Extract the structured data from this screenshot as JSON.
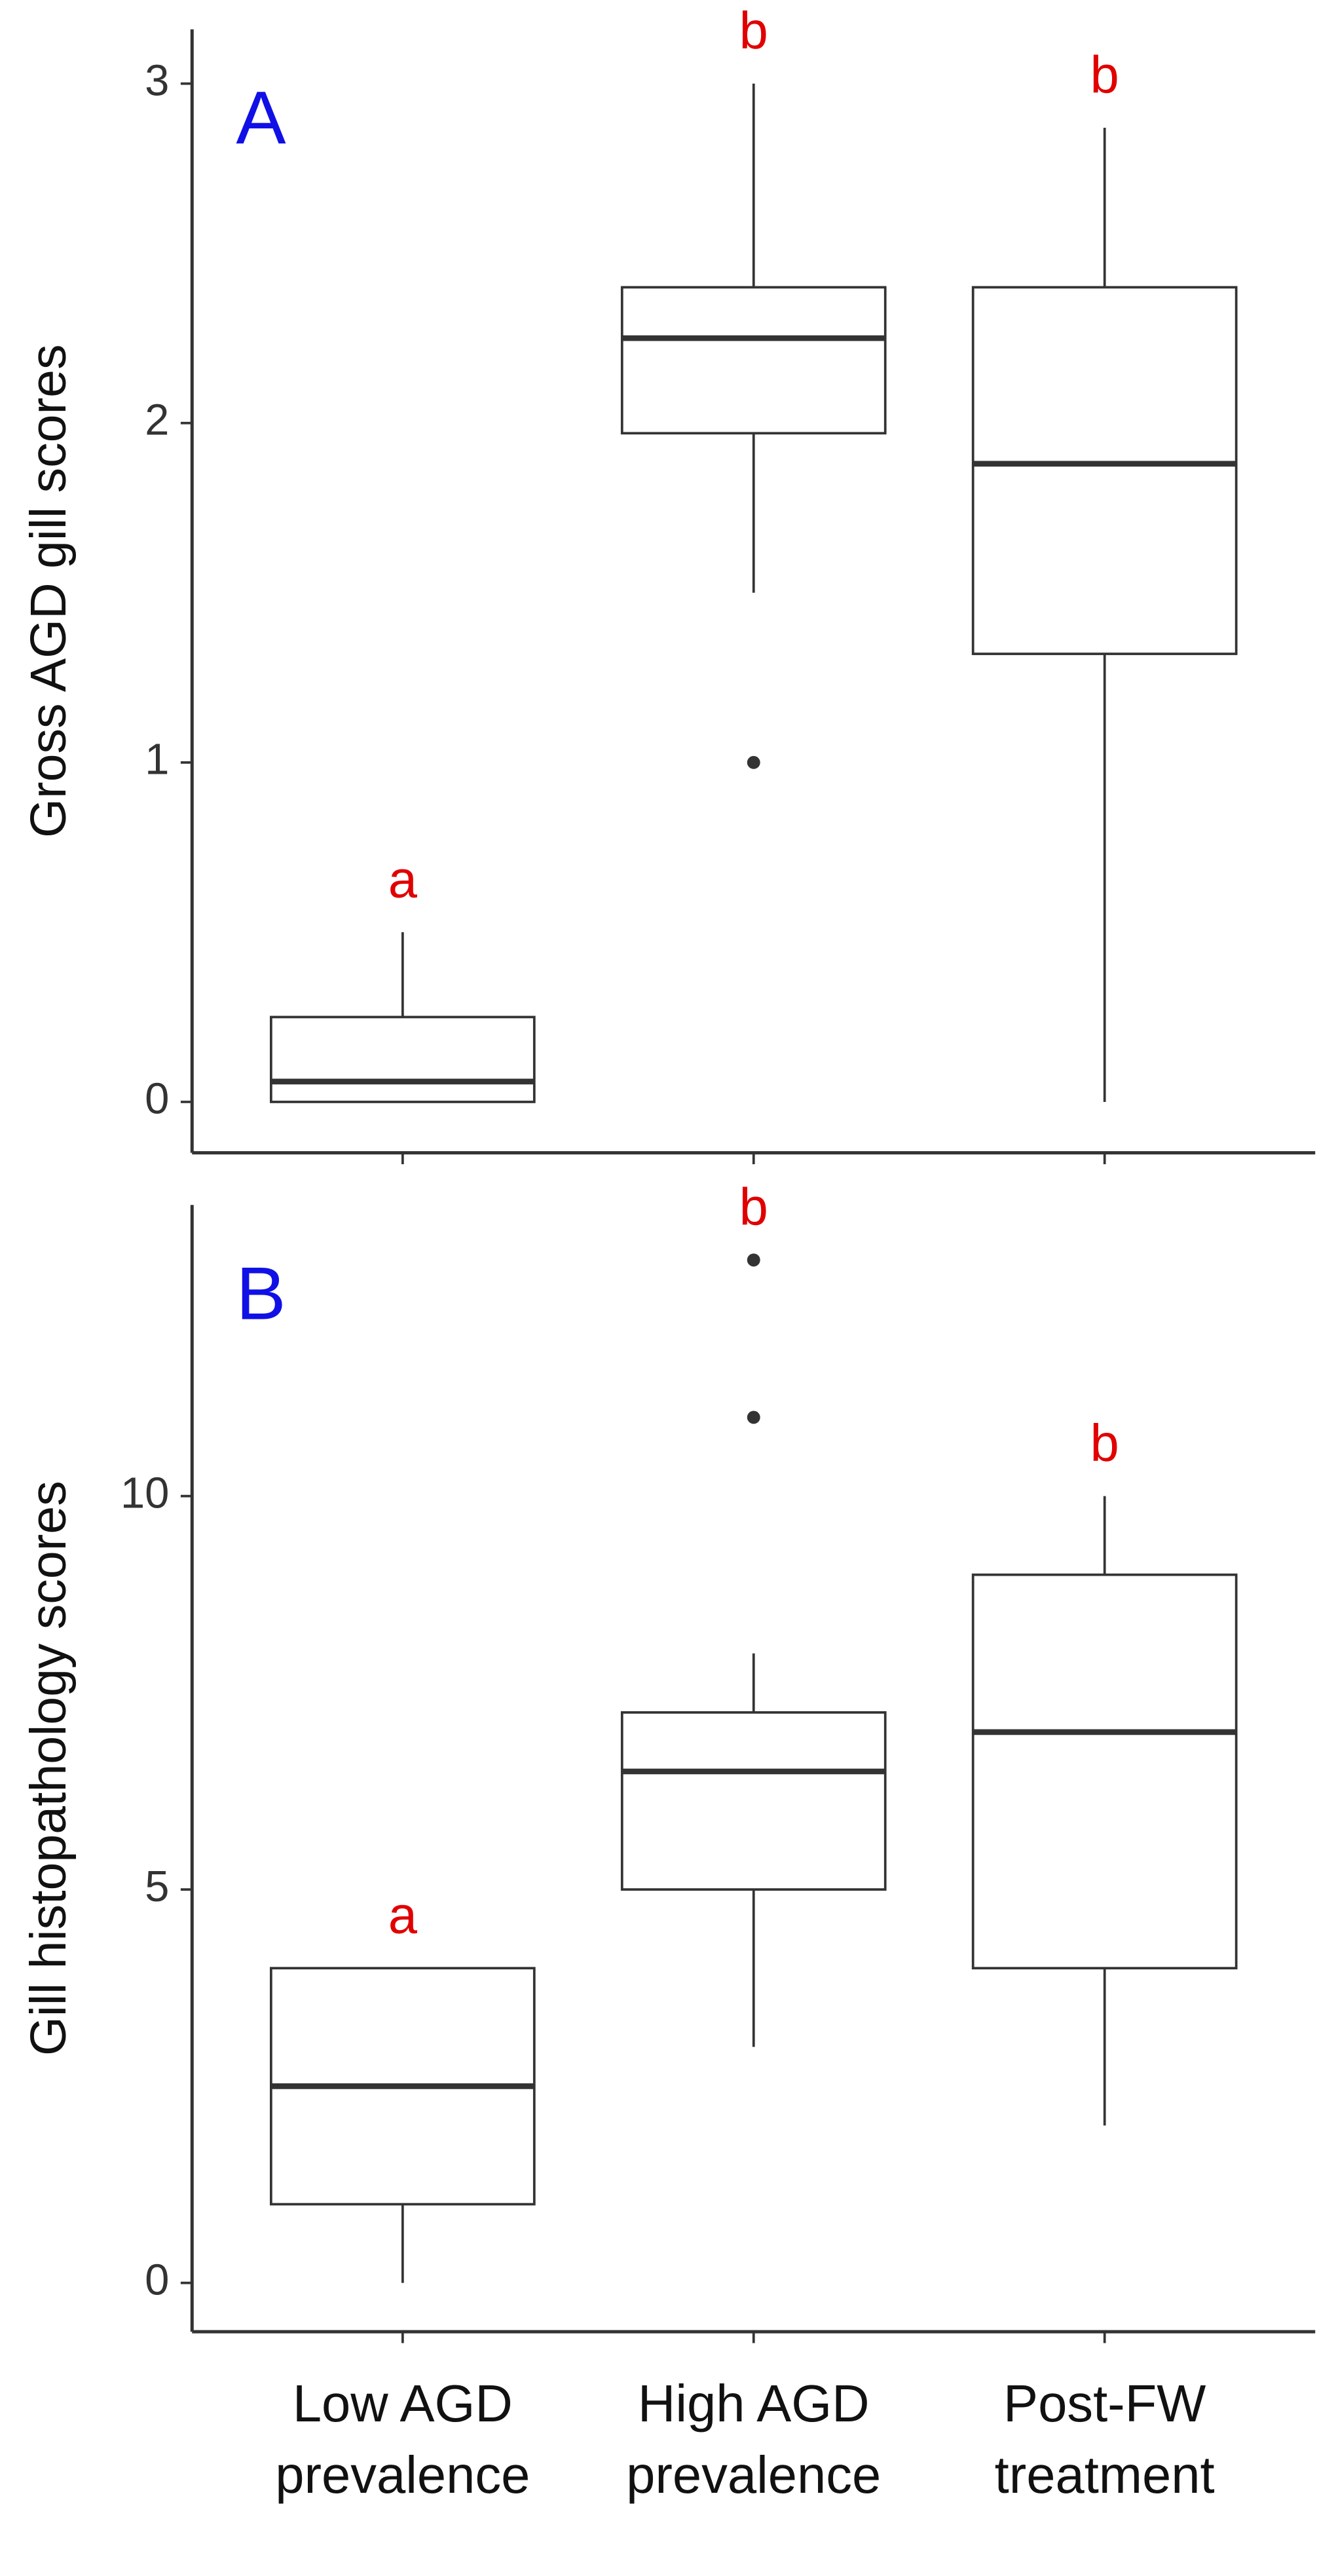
{
  "chart_data": [
    {
      "type": "box",
      "panel_label": "A",
      "ylabel": "Gross AGD gill scores",
      "ylim": [
        -0.15,
        3.16
      ],
      "yticks": [
        0,
        1,
        2,
        3
      ],
      "boxes": [
        {
          "whislo": 0,
          "q1": 0,
          "med": 0.06,
          "q3": 0.25,
          "whishi": 0.5,
          "fliers": [],
          "letter": "a"
        },
        {
          "whislo": 1.5,
          "q1": 1.97,
          "med": 2.25,
          "q3": 2.4,
          "whishi": 3,
          "fliers": [
            1
          ],
          "letter": "b"
        },
        {
          "whislo": 0,
          "q1": 1.32,
          "med": 1.88,
          "q3": 2.4,
          "whishi": 2.87,
          "fliers": [],
          "letter": "b"
        }
      ]
    },
    {
      "type": "box",
      "panel_label": "B",
      "ylabel": "Gill histopathology scores",
      "categories": [
        "Low AGD prevalence",
        "High AGD prevalence",
        "Post-FW treatment"
      ],
      "ylim": [
        -0.62,
        13.7
      ],
      "yticks": [
        0,
        5,
        10
      ],
      "boxes": [
        {
          "whislo": 0,
          "q1": 1,
          "med": 2.5,
          "q3": 4,
          "whishi": 4,
          "fliers": [],
          "letter": "a"
        },
        {
          "whislo": 3,
          "q1": 5,
          "med": 6.5,
          "q3": 7.25,
          "whishi": 8,
          "fliers": [
            11,
            13
          ],
          "letter": "b"
        },
        {
          "whislo": 2,
          "q1": 4,
          "med": 7,
          "q3": 9,
          "whishi": 10,
          "fliers": [],
          "letter": "b"
        }
      ]
    }
  ]
}
